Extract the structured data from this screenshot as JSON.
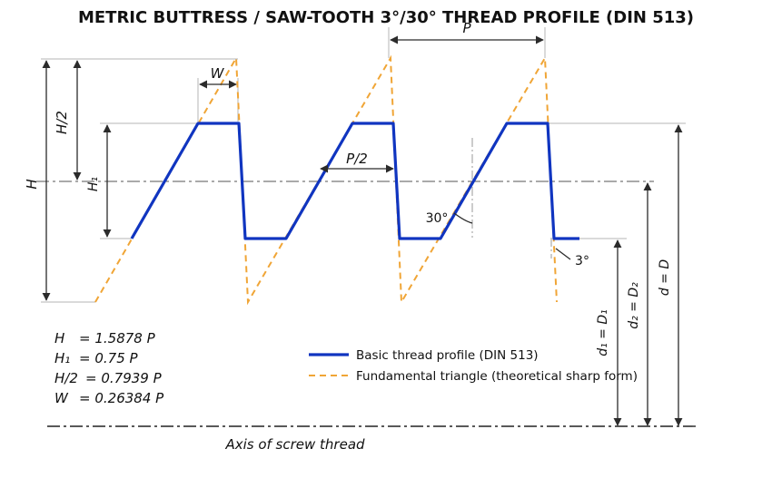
{
  "title": "METRIC BUTTRESS / SAW-TOOTH 3°/30° THREAD PROFILE (DIN 513)",
  "labels": {
    "pitch": "P",
    "half_pitch": "P/2",
    "width": "W",
    "H": "H",
    "H_half": "H/2",
    "H1": "H₁",
    "flank_angle_30": "30°",
    "flank_angle_3": "3°",
    "d1": "d₁ = D₁",
    "d2": "d₂ = D₂",
    "d": "d = D",
    "axis": "Axis of screw thread"
  },
  "formulas": [
    {
      "lhs": "H",
      "rhs": "= 1.5878 P"
    },
    {
      "lhs": "H₁",
      "rhs": "= 0.75 P"
    },
    {
      "lhs": "H/2",
      "rhs": "= 0.7939 P"
    },
    {
      "lhs": "W",
      "rhs": "= 0.26384 P"
    }
  ],
  "legend": [
    {
      "label": "Basic thread profile (DIN 513)",
      "color": "#1035c0",
      "style": "solid"
    },
    {
      "label": "Fundamental triangle (theoretical sharp form)",
      "color": "#f0a536",
      "style": "dashed"
    }
  ]
}
